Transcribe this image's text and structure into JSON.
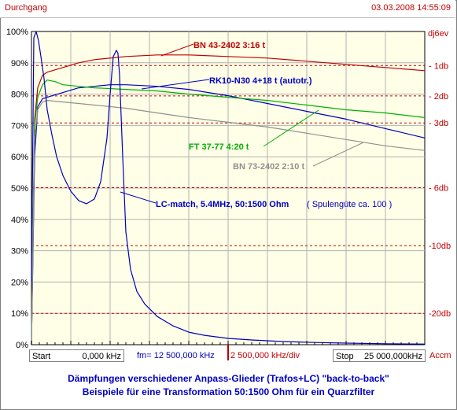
{
  "window": {
    "title": "Durchgang",
    "timestamp": "03.03.2008 14:55:09"
  },
  "axes": {
    "left_ticks": [
      "100%",
      "90%",
      "80%",
      "70%",
      "60%",
      "50%",
      "40%",
      "30%",
      "20%",
      "10%",
      "0%"
    ],
    "right_unit": "dj6ev",
    "right_ticks": [
      {
        "label": "- 1db",
        "db": -1
      },
      {
        "label": "- 2db",
        "db": -2
      },
      {
        "label": "- 3db",
        "db": -3
      },
      {
        "label": "- 6db",
        "db": -6
      },
      {
        "label": "-10db",
        "db": -10
      },
      {
        "label": "-20db",
        "db": -20
      }
    ],
    "accm": "Accm"
  },
  "x_controls": {
    "start_label": "Start",
    "start_value": "0,000 kHz",
    "fm_label": "fm=",
    "fm_value": "12 500,000 kHz",
    "div_value": "2 500,000 kHz/div",
    "stop_label": "Stop",
    "stop_value": "25 000,000kHz"
  },
  "footer": {
    "line1": "Dämpfungen verschiedener Anpass-Glieder (Trafos+LC)  \"back-to-back\"",
    "line2": "Beispiele für eine Transformation 50:1500 Ohm für ein Quarzfilter"
  },
  "chart_data": {
    "type": "line",
    "x_unit": "kHz",
    "xlim": [
      0,
      25000
    ],
    "ylim": [
      0,
      100
    ],
    "ylabel_left": "%",
    "grid": true,
    "series": [
      {
        "name": "BN 43-2402 3:16 t",
        "color": "#c00000",
        "x": [
          0,
          200,
          400,
          700,
          1000,
          2000,
          3000,
          4000,
          6000,
          8000,
          10000,
          12500,
          15000,
          17500,
          20000,
          22500,
          25000
        ],
        "y": [
          0,
          72,
          82,
          86,
          87,
          88.5,
          90,
          91,
          92,
          92.5,
          92.5,
          92,
          91.5,
          90.5,
          89.5,
          88.5,
          87.5
        ]
      },
      {
        "name": "RK10-N30 4+18 t (autotr.)",
        "color": "#0000c0",
        "x": [
          0,
          200,
          400,
          700,
          1000,
          2000,
          3000,
          4000,
          5000,
          6000,
          8000,
          10000,
          12500,
          15000,
          17500,
          20000,
          22500,
          25000
        ],
        "y": [
          0,
          60,
          76,
          78.5,
          79,
          80.5,
          82,
          82.5,
          83,
          83,
          82.5,
          81.5,
          79.5,
          77,
          74.5,
          72,
          69,
          66
        ]
      },
      {
        "name": "FT 37-77 4:20 t",
        "color": "#00b000",
        "x": [
          0,
          200,
          400,
          700,
          1000,
          1500,
          2000,
          3000,
          4000,
          6000,
          8000,
          10000,
          12500,
          15000,
          17500,
          20000,
          22500,
          25000
        ],
        "y": [
          0,
          70,
          79,
          83,
          84.5,
          84,
          83,
          82.5,
          82,
          81.5,
          81,
          80,
          79,
          78,
          76.5,
          75,
          74,
          72.5
        ]
      },
      {
        "name": "BN 73-2402 2:10 t",
        "color": "#909090",
        "x": [
          0,
          200,
          400,
          700,
          1000,
          2000,
          3000,
          4000,
          6000,
          8000,
          10000,
          12500,
          15000,
          17500,
          20000,
          22500,
          25000
        ],
        "y": [
          0,
          66,
          75,
          77.5,
          78,
          77.5,
          77,
          76.5,
          75.5,
          74,
          72.5,
          71,
          69.5,
          67.5,
          65.5,
          63.5,
          62
        ]
      },
      {
        "name": "LC-match,  5.4MHz, 50:1500 Ohm",
        "color": "#0000c0",
        "x": [
          0,
          150,
          300,
          450,
          600,
          800,
          1000,
          1300,
          1600,
          2000,
          2500,
          3000,
          3500,
          4000,
          4400,
          4800,
          5000,
          5200,
          5400,
          5500,
          5600,
          5800,
          6000,
          6300,
          6700,
          7200,
          8000,
          9000,
          10000,
          11000,
          12500,
          14000,
          16000,
          18000,
          20000,
          22500,
          25000
        ],
        "y": [
          20,
          98,
          100,
          97,
          92,
          85,
          75,
          67,
          60,
          54,
          49,
          46,
          45,
          46.5,
          52,
          66,
          80,
          92,
          94,
          93,
          86,
          60,
          36,
          24,
          17,
          13,
          9,
          6,
          4,
          3,
          2,
          1.5,
          1,
          0.7,
          0.5,
          0.3,
          0.2
        ]
      }
    ],
    "annotations": [
      {
        "text": "BN 43-2402 3:16 t",
        "color": "#c00000"
      },
      {
        "text": "RK10-N30 4+18 t (autotr.)",
        "color": "#0000c0"
      },
      {
        "text": "FT 37-77 4:20 t",
        "color": "#00b000"
      },
      {
        "text": "BN 73-2402 2:10 t",
        "color": "#909090"
      },
      {
        "text": "LC-match,  5.4MHz, 50:1500 Ohm",
        "color": "#0000c0"
      },
      {
        "text": "( Spulengüte ca. 100 )",
        "color": "#0000c0"
      }
    ]
  }
}
